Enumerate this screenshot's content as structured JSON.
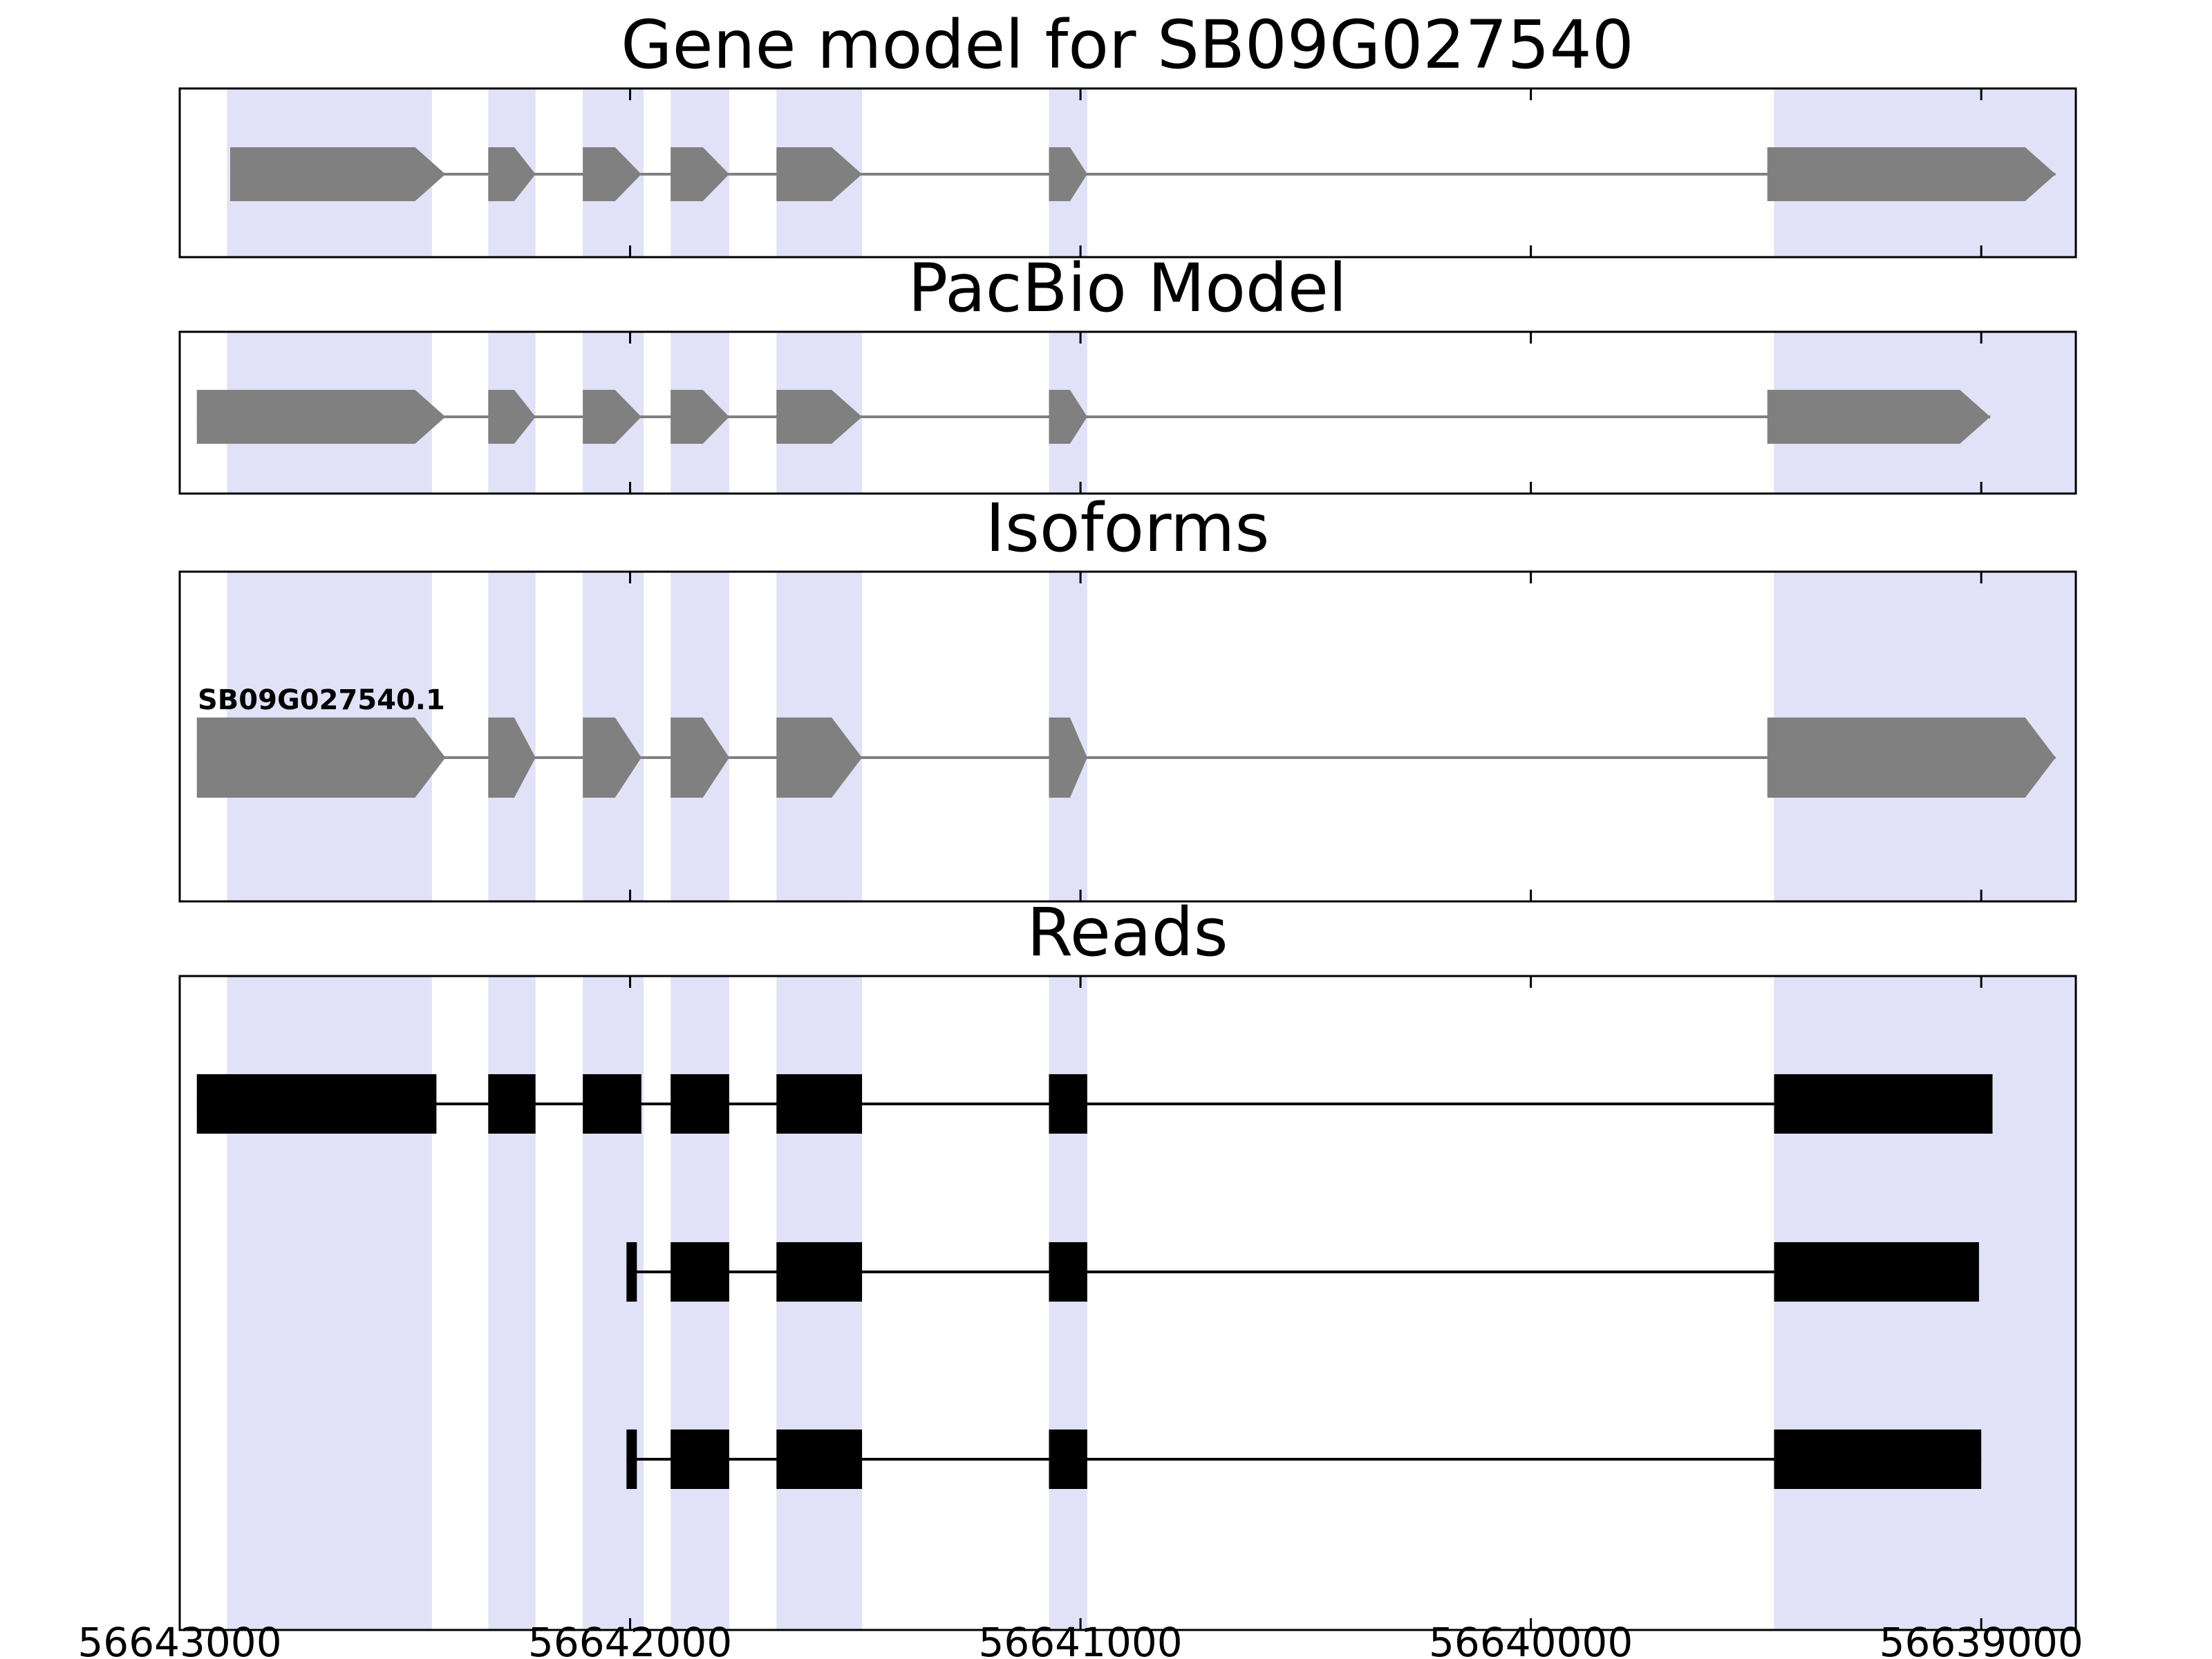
{
  "chart_data": {
    "type": "gene-structure-tracks",
    "x_axis": {
      "range": [
        56643000,
        56638790
      ],
      "direction": "decreasing",
      "ticks": [
        56643000,
        56642000,
        56641000,
        56640000,
        56639000
      ],
      "tick_labels": [
        "56643000",
        "56642000",
        "56641000",
        "56640000",
        "56639000"
      ]
    },
    "colors": {
      "highlight_band": "#e1e1f7",
      "gene_model": "#808080",
      "reads": "#000000",
      "border": "#000000",
      "background": "#ffffff"
    },
    "highlight_regions": [
      {
        "start": 56642895,
        "end": 56642440
      },
      {
        "start": 56642315,
        "end": 56642210
      },
      {
        "start": 56642105,
        "end": 56641970
      },
      {
        "start": 56641910,
        "end": 56641780
      },
      {
        "start": 56641675,
        "end": 56641485
      },
      {
        "start": 56641070,
        "end": 56640985
      },
      {
        "start": 56639460,
        "end": 56638790
      }
    ],
    "panels": [
      {
        "id": "gene-model",
        "title": "Gene model for SB09G027540",
        "style": "gene",
        "color": "#808080",
        "models": [
          {
            "exons": [
              [
                56642888,
                56642410
              ],
              [
                56642315,
                56642210
              ],
              [
                56642105,
                56641975
              ],
              [
                56641910,
                56641780
              ],
              [
                56641675,
                56641485
              ],
              [
                56641070,
                56640985
              ],
              [
                56639475,
                56638835
              ]
            ],
            "strand_arrow": "right"
          }
        ]
      },
      {
        "id": "pacbio-model",
        "title": "PacBio Model",
        "style": "gene",
        "color": "#808080",
        "models": [
          {
            "exons": [
              [
                56642962,
                56642410
              ],
              [
                56642315,
                56642210
              ],
              [
                56642105,
                56641975
              ],
              [
                56641910,
                56641780
              ],
              [
                56641675,
                56641485
              ],
              [
                56641070,
                56640985
              ],
              [
                56639475,
                56638980
              ]
            ],
            "strand_arrow": "right"
          }
        ]
      },
      {
        "id": "isoforms",
        "title": "Isoforms",
        "style": "gene",
        "color": "#808080",
        "models": [
          {
            "label": "SB09G027540.1",
            "exons": [
              [
                56642962,
                56642410
              ],
              [
                56642315,
                56642210
              ],
              [
                56642105,
                56641975
              ],
              [
                56641910,
                56641780
              ],
              [
                56641675,
                56641485
              ],
              [
                56641070,
                56640985
              ],
              [
                56639475,
                56638835
              ]
            ],
            "strand_arrow": "right"
          }
        ]
      },
      {
        "id": "reads",
        "title": "Reads",
        "style": "read",
        "color": "#000000",
        "models": [
          {
            "exons": [
              [
                56642962,
                56642430
              ],
              [
                56642315,
                56642210
              ],
              [
                56642105,
                56641975
              ],
              [
                56641910,
                56641780
              ],
              [
                56641675,
                56641485
              ],
              [
                56641070,
                56640985
              ],
              [
                56639460,
                56638975
              ]
            ]
          },
          {
            "exons": [
              [
                56642008,
                56641985
              ],
              [
                56641910,
                56641780
              ],
              [
                56641675,
                56641485
              ],
              [
                56641070,
                56640985
              ],
              [
                56639460,
                56639005
              ]
            ]
          },
          {
            "exons": [
              [
                56642008,
                56641985
              ],
              [
                56641910,
                56641780
              ],
              [
                56641675,
                56641485
              ],
              [
                56641070,
                56640985
              ],
              [
                56639460,
                56639000
              ]
            ]
          }
        ]
      }
    ]
  }
}
